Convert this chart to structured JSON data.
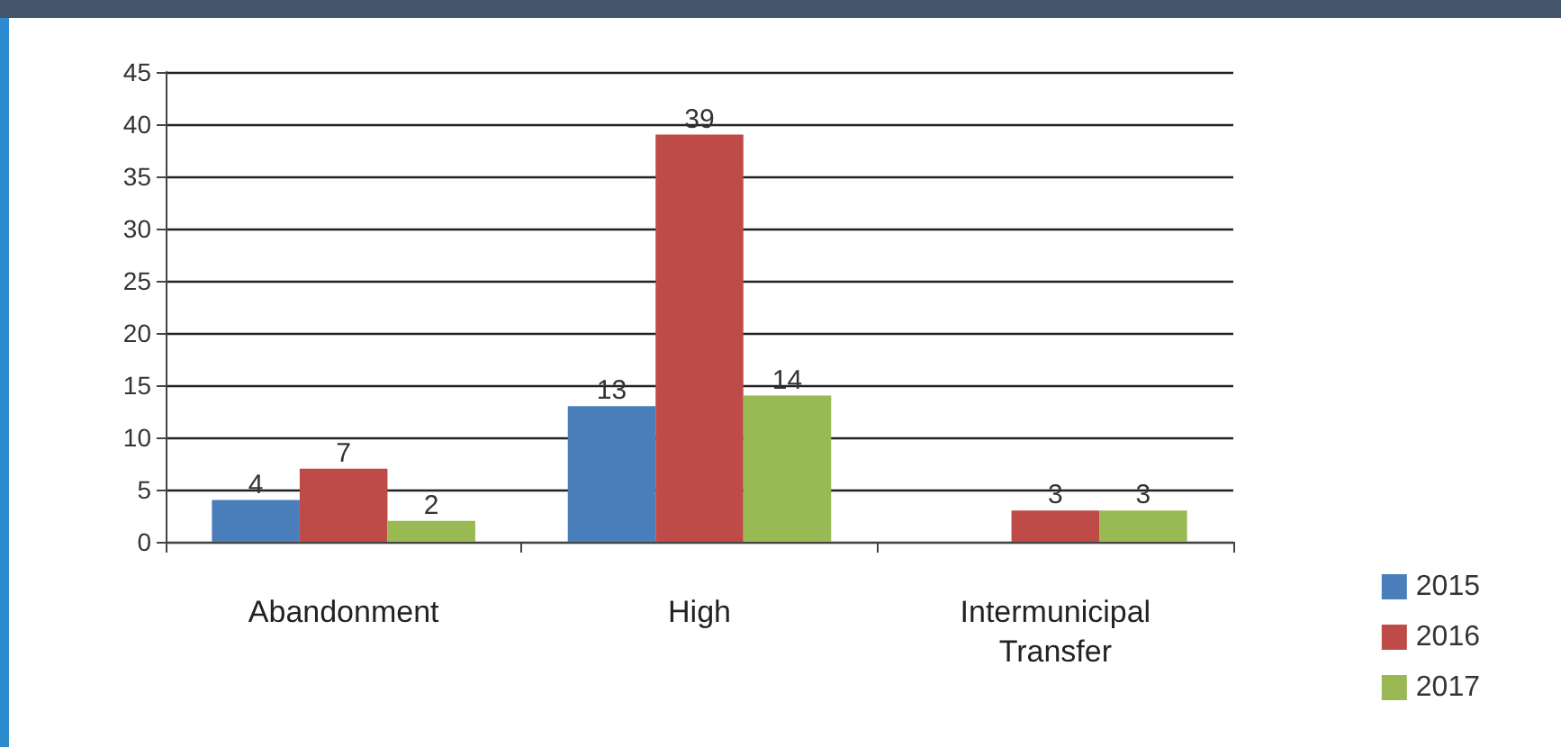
{
  "chart_data": {
    "type": "bar",
    "categories": [
      "Abandonment",
      "High",
      "Intermunicipal\nTransfer"
    ],
    "series": [
      {
        "name": "2015",
        "color": "#4a7ebb",
        "values": [
          4,
          13,
          null
        ]
      },
      {
        "name": "2016",
        "color": "#be4b48",
        "values": [
          7,
          39,
          3
        ]
      },
      {
        "name": "2017",
        "color": "#98b954",
        "values": [
          2,
          14,
          3
        ]
      }
    ],
    "ylim": [
      0,
      45
    ],
    "yticks": [
      0,
      5,
      10,
      15,
      20,
      25,
      30,
      35,
      40,
      45
    ],
    "grid": "y",
    "legend": "bottom right",
    "data_labels": true
  }
}
